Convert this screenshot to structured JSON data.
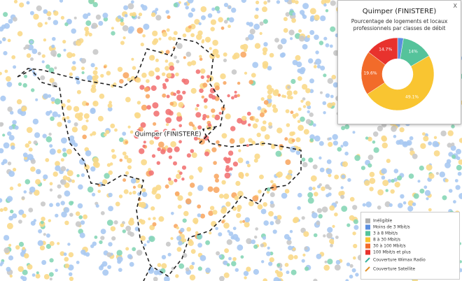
{
  "map": {
    "place_label": "Quimper (FINISTERE)"
  },
  "popup": {
    "title": "Quimper (FINISTERE)",
    "subtitle": "Pourcentage de logements et locaux professionnels par classes de débit",
    "close": "X",
    "chart_data": {
      "type": "donut",
      "categories": [
        "Inéligible",
        "Moins de 3 Mbit/s",
        "3 à 8 Mbit/s",
        "8 à 30 Mbit/s",
        "30 à 100 Mbit/s",
        "100 Mbit/s et plus"
      ],
      "values": [
        0,
        2.6,
        14,
        49.1,
        19.6,
        14.7
      ],
      "value_labels": [
        null,
        null,
        "14%",
        "49.1%",
        "19.6%",
        "14.7%"
      ],
      "colors": [
        "#b0b0b0",
        "#5b8fe0",
        "#55c39b",
        "#f9c531",
        "#f26b2a",
        "#e8322d"
      ]
    }
  },
  "legend": {
    "extras": [
      "Couverture Wimax Radio",
      "Couverture Satellite"
    ]
  }
}
